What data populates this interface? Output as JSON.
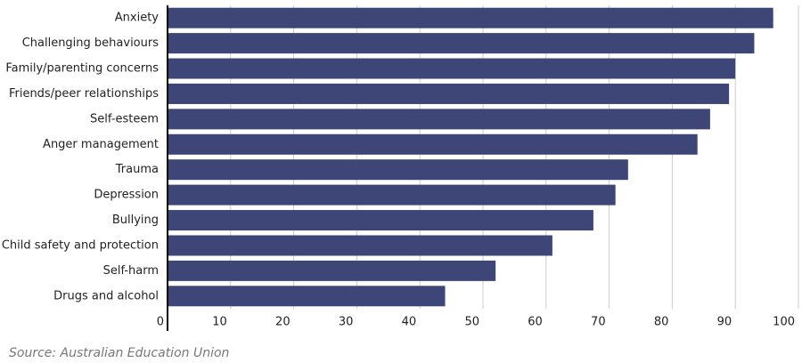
{
  "chart_data": {
    "type": "barh",
    "categories": [
      "Anxiety",
      "Challenging behaviours",
      "Family/parenting concerns",
      "Friends/peer relationships",
      "Self-esteem",
      "Anger management",
      "Trauma",
      "Depression",
      "Bullying",
      "Child safety and protection",
      "Self-harm",
      "Drugs and alcohol"
    ],
    "values": [
      96,
      93,
      90,
      89,
      86,
      84,
      73,
      71,
      67.5,
      61,
      52,
      44
    ],
    "color": "#3d4677",
    "xlim": [
      0,
      100
    ],
    "xticks": [
      0,
      10,
      20,
      30,
      40,
      50,
      60,
      70,
      80,
      90,
      100
    ],
    "grid": true,
    "source": "Source: Australian Education Union"
  }
}
